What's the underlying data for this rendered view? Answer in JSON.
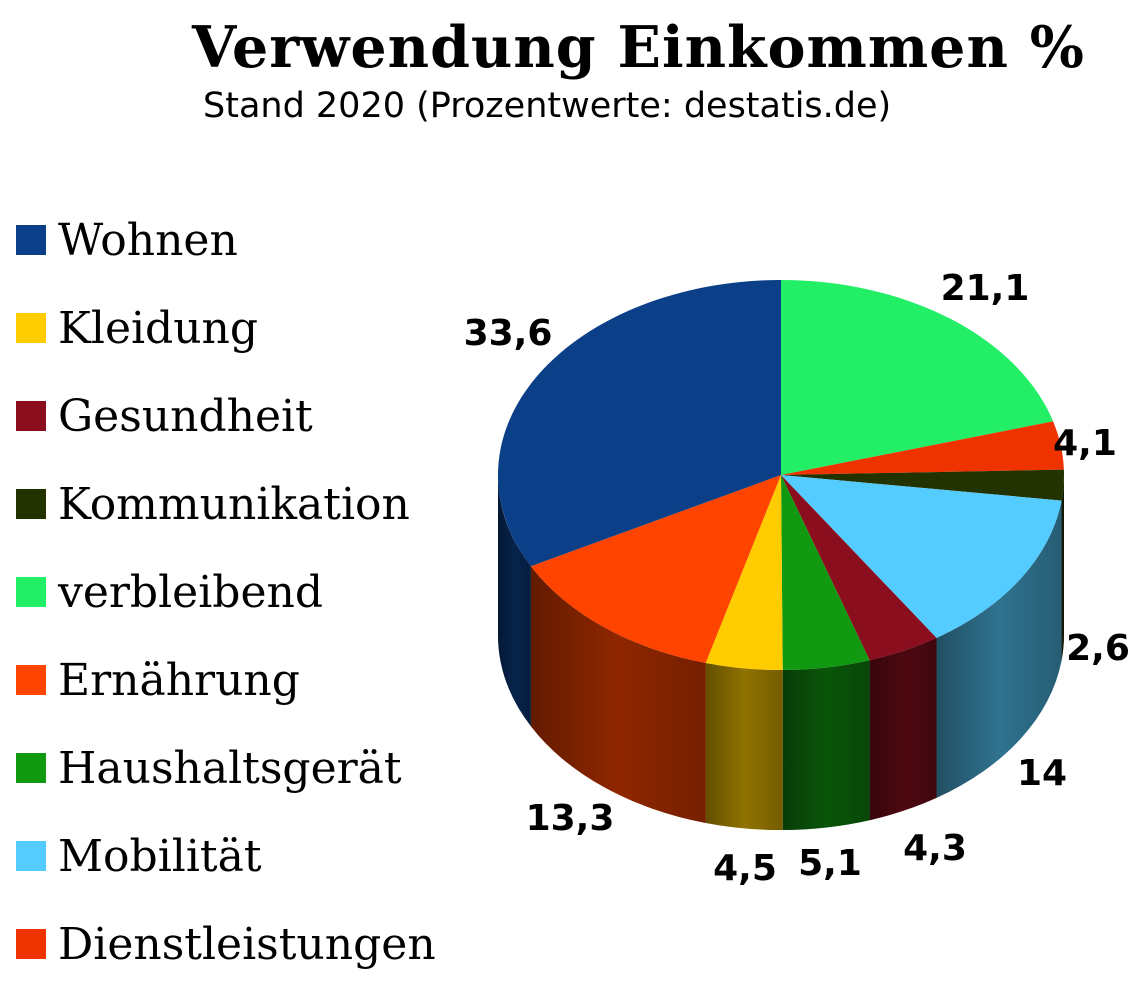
{
  "title": "Verwendung Einkommen %",
  "subtitle": "Stand 2020 (Prozentwerte: destatis.de)",
  "chart_data": {
    "type": "pie",
    "title": "Verwendung Einkommen %",
    "subtitle": "Stand 2020 (Prozentwerte: destatis.de)",
    "legend": [
      {
        "label": "Wohnen",
        "color": "#0b3f87"
      },
      {
        "label": "Kleidung",
        "color": "#ffcc00"
      },
      {
        "label": "Gesundheit",
        "color": "#8a0e1e"
      },
      {
        "label": "Kommunikation",
        "color": "#223300"
      },
      {
        "label": "verbleibend",
        "color": "#22ee66"
      },
      {
        "label": "Ernährung",
        "color": "#ff4400"
      },
      {
        "label": "Haushaltsgerät",
        "color": "#119911"
      },
      {
        "label": "Mobilität",
        "color": "#55ccff"
      },
      {
        "label": "Dienstleistungen",
        "color": "#ee3300"
      }
    ],
    "slices": [
      {
        "category": "verbleibend",
        "value": 21.1,
        "label": "21,1",
        "color": "#22ee66"
      },
      {
        "category": "Dienstleistungen",
        "value": 4.1,
        "label": "4,1",
        "color": "#ee3300"
      },
      {
        "category": "Kommunikation",
        "value": 2.6,
        "label": "2,6",
        "color": "#223300"
      },
      {
        "category": "Mobilität",
        "value": 14,
        "label": "14",
        "color": "#55ccff"
      },
      {
        "category": "Gesundheit",
        "value": 4.3,
        "label": "4,3",
        "color": "#8a0e1e"
      },
      {
        "category": "Haushaltsgerät",
        "value": 5.1,
        "label": "5,1",
        "color": "#119911"
      },
      {
        "category": "Kleidung",
        "value": 4.5,
        "label": "4,5",
        "color": "#ffcc00"
      },
      {
        "category": "Ernährung",
        "value": 13.3,
        "label": "13,3",
        "color": "#ff4400"
      },
      {
        "category": "Wohnen",
        "value": 33.6,
        "label": "33,6",
        "color": "#0b3f87"
      }
    ],
    "style": "3d-cylinder",
    "start": "12 o'clock, clockwise",
    "legend_position": "left"
  }
}
